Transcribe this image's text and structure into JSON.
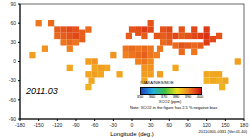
{
  "chart_data": {
    "type": "scatter",
    "title": "2011.03",
    "x_label": "Longitude (deg.)",
    "xlim": [
      -180,
      180
    ],
    "xticks": [
      -180,
      -150,
      -120,
      -90,
      -60,
      -30,
      0,
      30,
      60,
      90,
      120,
      150,
      180
    ],
    "ylim": [
      -90,
      90
    ],
    "yticks": [
      -90,
      -60,
      -30,
      0,
      30,
      60,
      90
    ],
    "grid": false,
    "marker": "square",
    "annotations": [
      "©JAXA/NIES/MOE",
      "Note: XCO2 in the figure has 2.5 % negative bias",
      "20110301-0331 (Ver.01.40)"
    ],
    "colorbar": {
      "label": "XCO2 (ppm)",
      "range": [
        350,
        400
      ],
      "ticks": [
        350,
        360,
        370,
        380,
        390,
        400
      ],
      "colors": [
        "#2040c0",
        "#20b0e0",
        "#40c040",
        "#f0e020",
        "#f08020",
        "#d01010"
      ]
    },
    "cells": [
      [
        -120,
        50,
        393
      ],
      [
        -110,
        50,
        394
      ],
      [
        -100,
        50,
        395
      ],
      [
        -90,
        50,
        394
      ],
      [
        -80,
        45,
        393
      ],
      [
        -120,
        40,
        392
      ],
      [
        -110,
        40,
        393
      ],
      [
        -100,
        40,
        394
      ],
      [
        -90,
        40,
        395
      ],
      [
        -80,
        35,
        393
      ],
      [
        -110,
        30,
        391
      ],
      [
        -100,
        30,
        392
      ],
      [
        -90,
        30,
        391
      ],
      [
        -100,
        20,
        390
      ],
      [
        -130,
        60,
        392
      ],
      [
        -70,
        50,
        392
      ],
      [
        -150,
        60,
        391
      ],
      [
        -70,
        0,
        387
      ],
      [
        -60,
        0,
        388
      ],
      [
        -50,
        -10,
        387
      ],
      [
        -60,
        -10,
        386
      ],
      [
        -70,
        -20,
        386
      ],
      [
        -60,
        -20,
        387
      ],
      [
        -50,
        -20,
        386
      ],
      [
        -65,
        -30,
        386
      ],
      [
        -70,
        -40,
        385
      ],
      [
        -40,
        -10,
        386
      ],
      [
        0,
        50,
        394
      ],
      [
        10,
        50,
        395
      ],
      [
        20,
        50,
        396
      ],
      [
        30,
        50,
        395
      ],
      [
        -5,
        40,
        393
      ],
      [
        10,
        45,
        394
      ],
      [
        30,
        60,
        394
      ],
      [
        20,
        40,
        393
      ],
      [
        -10,
        20,
        391
      ],
      [
        0,
        20,
        392
      ],
      [
        10,
        20,
        391
      ],
      [
        20,
        20,
        392
      ],
      [
        30,
        20,
        391
      ],
      [
        -10,
        10,
        390
      ],
      [
        0,
        10,
        391
      ],
      [
        10,
        10,
        392
      ],
      [
        20,
        10,
        393
      ],
      [
        30,
        10,
        391
      ],
      [
        40,
        10,
        390
      ],
      [
        10,
        0,
        390
      ],
      [
        20,
        0,
        391
      ],
      [
        30,
        0,
        389
      ],
      [
        20,
        -10,
        388
      ],
      [
        30,
        -10,
        388
      ],
      [
        20,
        -20,
        387
      ],
      [
        30,
        -20,
        387
      ],
      [
        20,
        -30,
        386
      ],
      [
        45,
        -20,
        387
      ],
      [
        40,
        40,
        394
      ],
      [
        50,
        40,
        393
      ],
      [
        60,
        40,
        394
      ],
      [
        70,
        40,
        395
      ],
      [
        80,
        40,
        393
      ],
      [
        90,
        40,
        394
      ],
      [
        100,
        40,
        395
      ],
      [
        110,
        40,
        396
      ],
      [
        120,
        40,
        397
      ],
      [
        50,
        50,
        394
      ],
      [
        60,
        50,
        395
      ],
      [
        80,
        50,
        394
      ],
      [
        100,
        50,
        395
      ],
      [
        120,
        50,
        396
      ],
      [
        50,
        30,
        392
      ],
      [
        60,
        30,
        393
      ],
      [
        70,
        25,
        392
      ],
      [
        80,
        25,
        394
      ],
      [
        90,
        25,
        393
      ],
      [
        100,
        25,
        392
      ],
      [
        110,
        25,
        393
      ],
      [
        120,
        30,
        396
      ],
      [
        80,
        15,
        392
      ],
      [
        100,
        15,
        391
      ],
      [
        130,
        35,
        395
      ],
      [
        140,
        40,
        394
      ],
      [
        45,
        20,
        391
      ],
      [
        120,
        -20,
        386
      ],
      [
        130,
        -20,
        386
      ],
      [
        140,
        -20,
        386
      ],
      [
        120,
        -30,
        385
      ],
      [
        130,
        -30,
        386
      ],
      [
        140,
        -30,
        385
      ],
      [
        150,
        -30,
        386
      ],
      [
        145,
        -40,
        385
      ],
      [
        -140,
        20,
        388
      ],
      [
        -160,
        10,
        387
      ],
      [
        170,
        0,
        387
      ],
      [
        -30,
        10,
        388
      ],
      [
        70,
        -10,
        386
      ],
      [
        -100,
        -10,
        386
      ],
      [
        -20,
        -20,
        386
      ]
    ]
  }
}
